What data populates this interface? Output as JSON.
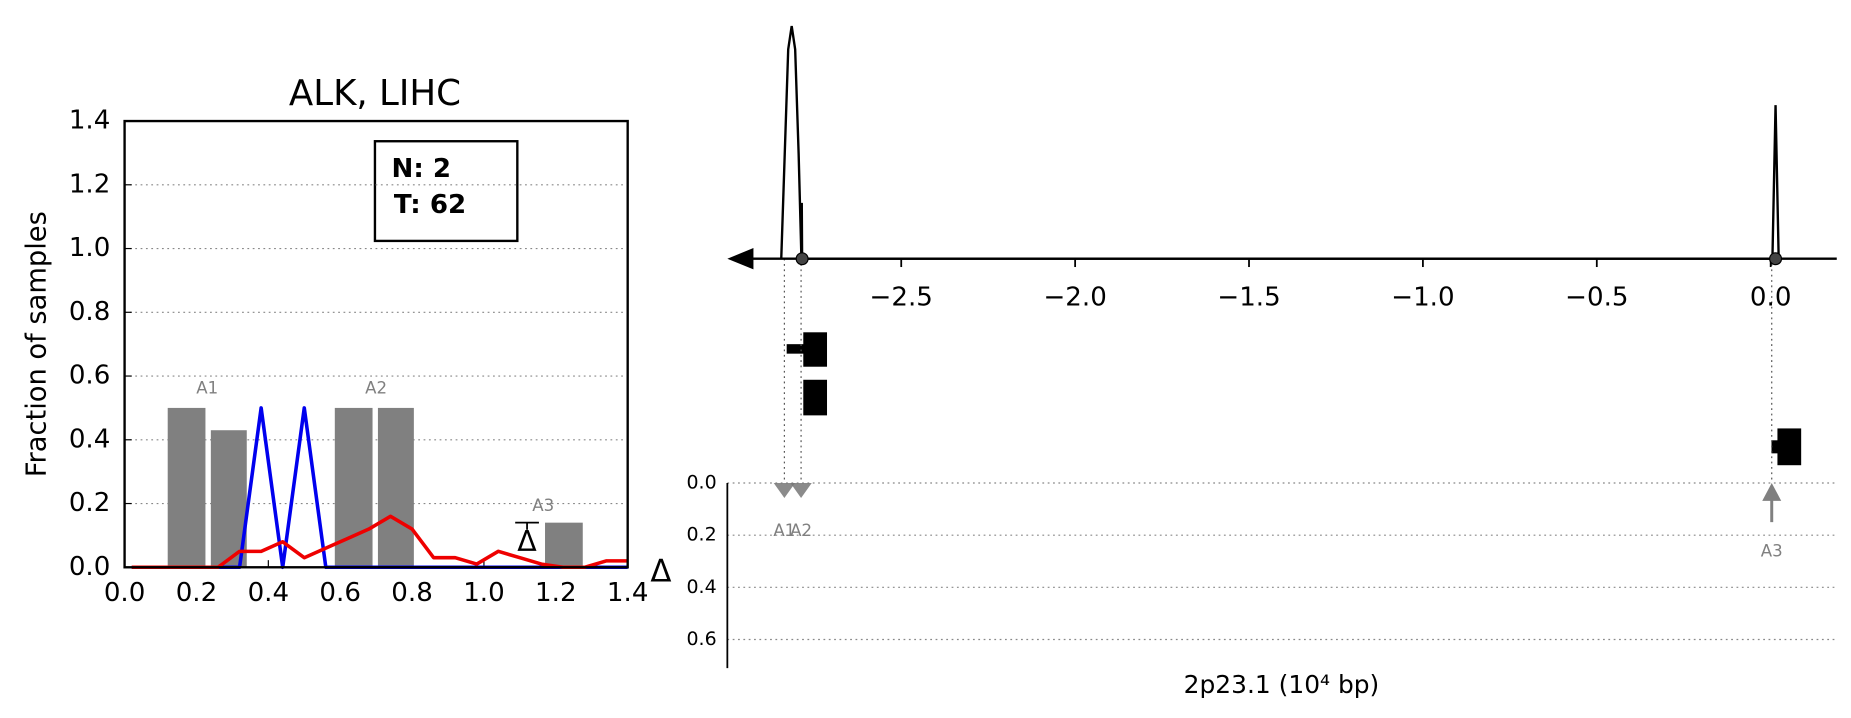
{
  "chart_data": [
    {
      "type": "histogram-lines",
      "title": "ALK, LIHC",
      "ylabel": "Fraction of samples",
      "xlim": [
        0,
        1.4
      ],
      "ylim": [
        0,
        1.4
      ],
      "xticks": [
        {
          "value": 0,
          "label": "0.0"
        },
        0.2,
        0.4,
        0.6,
        0.8,
        {
          "value": 1,
          "label": "1.0"
        },
        1.2,
        1.4
      ],
      "yticks": [
        {
          "value": 0,
          "label": "0.0"
        },
        0.2,
        0.4,
        0.6,
        0.8,
        {
          "value": 1,
          "label": "1.0"
        },
        1.2,
        1.4
      ],
      "grid": true,
      "bars": {
        "color": "#808080",
        "left": [
          0.12,
          0.24,
          0.585,
          0.705,
          1.17
        ],
        "right": [
          0.225,
          0.34,
          0.69,
          0.805,
          1.275
        ],
        "values": [
          0.5,
          0.43,
          0.5,
          0.5,
          0.14
        ]
      },
      "annotations": [
        {
          "text": "A1",
          "x": 0.23,
          "y": 0.56
        },
        {
          "text": "A2",
          "x": 0.7,
          "y": 0.56
        },
        {
          "text": "A3",
          "x": 1.165,
          "y": 0.19
        }
      ],
      "x": [
        0.02,
        0.08,
        0.14,
        0.2,
        0.26,
        0.32,
        0.38,
        0.44,
        0.5,
        0.56,
        0.62,
        0.68,
        0.74,
        0.8,
        0.86,
        0.92,
        0.98,
        1.04,
        1.1,
        1.16,
        1.22,
        1.28,
        1.34,
        1.4
      ],
      "series": [
        {
          "color": "#0000ee",
          "values": [
            0,
            0,
            0,
            0,
            0,
            0,
            0.5,
            0,
            0.5,
            0,
            0,
            0,
            0,
            0,
            0,
            0,
            0,
            0,
            0,
            0,
            0,
            0,
            0,
            0
          ]
        },
        {
          "color": "#ee0000",
          "values": [
            0,
            0,
            0,
            0,
            0,
            0.05,
            0.05,
            0.08,
            0.03,
            0.06,
            0.09,
            0.12,
            0.16,
            0.12,
            0.03,
            0.03,
            0.01,
            0.05,
            0.03,
            0.01,
            0,
            0,
            0.02,
            0.02
          ]
        }
      ],
      "info_box": [
        "N: 2",
        "T: 62"
      ],
      "delta_marker": {
        "label": "Δ",
        "x": 1.12,
        "value": 0.14
      }
    },
    {
      "type": "track",
      "xlabel": "2p23.1 (10⁴ bp)",
      "xlim": [
        -3.0,
        0.19
      ],
      "xticks": [
        {
          "value": -2.5,
          "label": "−2.5"
        },
        {
          "value": -2,
          "label": "−2.0"
        },
        {
          "value": -1.5,
          "label": "−1.5"
        },
        {
          "value": -1,
          "label": "−1.0"
        },
        {
          "value": -0.5,
          "label": "−0.5"
        },
        {
          "value": 0,
          "label": "0.0"
        }
      ],
      "density": {
        "ylim": [
          0,
          1
        ],
        "x": [
          -2.845,
          -2.835,
          -2.825,
          -2.815,
          -2.805,
          -2.795,
          -2.787,
          -2.786,
          -2.785,
          0.005,
          0.014,
          0.023
        ],
        "values": [
          0,
          0.45,
          0.9,
          1,
          0.9,
          0.45,
          0,
          0.24,
          0,
          0,
          0.66,
          0
        ]
      },
      "sites": [
        -2.785,
        0.014
      ],
      "delta_label": "Δ",
      "delta_ylim": [
        0,
        0.71
      ],
      "delta_yticks": [
        {
          "value": 0,
          "label": "0.0"
        },
        0.2,
        0.4,
        0.6
      ],
      "events": [
        {
          "name": "A1",
          "x": -2.836,
          "delta": 0.03,
          "direction": "down"
        },
        {
          "name": "A2",
          "x": -2.788,
          "delta": 0.03,
          "direction": "down"
        },
        {
          "name": "A3",
          "x": 0.003,
          "delta": 0.15,
          "direction": "up"
        }
      ]
    }
  ]
}
